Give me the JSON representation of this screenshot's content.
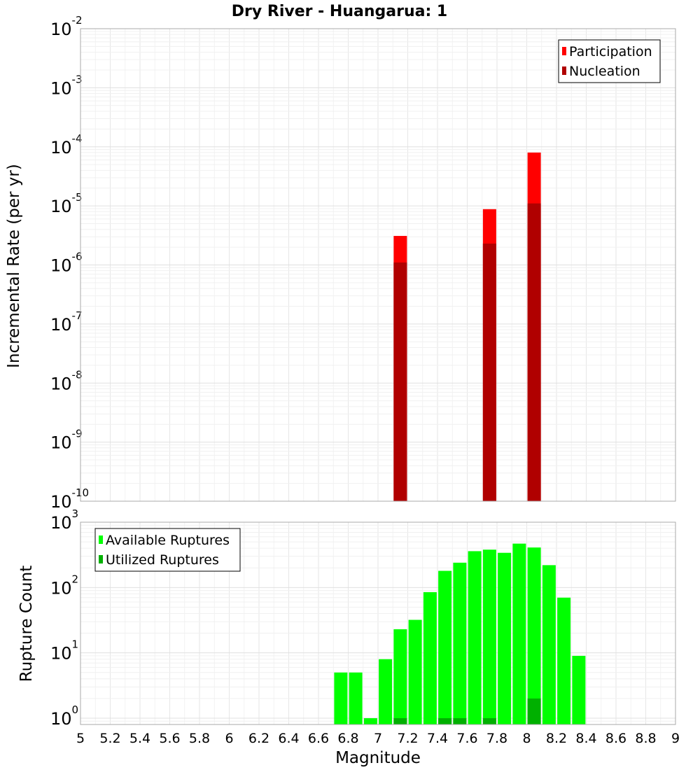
{
  "title": "Dry River - Huangarua: 1",
  "xlabel": "Magnitude",
  "x_ticks": [
    "5",
    "5.2",
    "5.4",
    "5.6",
    "5.8",
    "6",
    "6.2",
    "6.4",
    "6.6",
    "6.8",
    "7",
    "7.2",
    "7.4",
    "7.6",
    "7.8",
    "8",
    "8.2",
    "8.4",
    "8.6",
    "8.8",
    "9"
  ],
  "chart_data": [
    {
      "type": "bar",
      "ylabel": "Incremental Rate (per yr)",
      "yscale": "log",
      "ylim": [
        1e-10,
        0.01
      ],
      "xlim": [
        5,
        9
      ],
      "y_ticks": [
        {
          "base": "10",
          "exp": "-2"
        },
        {
          "base": "10",
          "exp": "-3"
        },
        {
          "base": "10",
          "exp": "-4"
        },
        {
          "base": "10",
          "exp": "-5"
        },
        {
          "base": "10",
          "exp": "-6"
        },
        {
          "base": "10",
          "exp": "-7"
        },
        {
          "base": "10",
          "exp": "-8"
        },
        {
          "base": "10",
          "exp": "-9"
        },
        {
          "base": "10",
          "exp": "-10"
        }
      ],
      "legend": {
        "position": "top-right"
      },
      "series": [
        {
          "name": "Participation",
          "color": "#ff0000",
          "x": [
            7.15,
            7.75,
            8.05
          ],
          "values": [
            3.1e-06,
            8.8e-06,
            8e-05
          ]
        },
        {
          "name": "Nucleation",
          "color": "#b00000",
          "x": [
            7.15,
            7.75,
            8.05
          ],
          "values": [
            1.1e-06,
            2.3e-06,
            1.1e-05
          ]
        }
      ]
    },
    {
      "type": "bar",
      "ylabel": "Rupture Count",
      "yscale": "log",
      "ylim": [
        0.8,
        1000
      ],
      "xlim": [
        5,
        9
      ],
      "y_ticks": [
        {
          "base": "10",
          "exp": "3"
        },
        {
          "base": "10",
          "exp": "2"
        },
        {
          "base": "10",
          "exp": "1"
        },
        {
          "base": "10",
          "exp": "0"
        }
      ],
      "legend": {
        "position": "top-left"
      },
      "series": [
        {
          "name": "Available Ruptures",
          "color": "#00ff00",
          "x": [
            6.75,
            6.85,
            6.95,
            7.05,
            7.15,
            7.25,
            7.35,
            7.45,
            7.55,
            7.65,
            7.75,
            7.85,
            7.95,
            8.05,
            8.15,
            8.25,
            8.35
          ],
          "values": [
            5,
            5,
            1,
            8,
            23,
            32,
            85,
            180,
            240,
            360,
            380,
            340,
            470,
            410,
            220,
            70,
            9
          ]
        },
        {
          "name": "Utilized Ruptures",
          "color": "#00b000",
          "x": [
            7.15,
            7.45,
            7.55,
            7.75,
            8.05
          ],
          "values": [
            1,
            1,
            1,
            1,
            2
          ]
        }
      ]
    }
  ]
}
